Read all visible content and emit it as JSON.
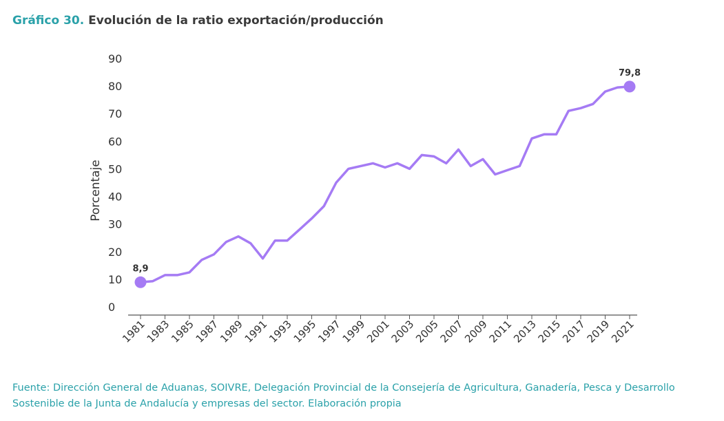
{
  "header": {
    "title_number": "Gráfico 30.",
    "title_text": "Evolución de la ratio exportación/producción"
  },
  "source_text": "Fuente: Dirección General de Aduanas, SOIVRE, Delegación Provincial de la Consejería de Agricultura, Ganadería, Pesca y Desarrollo Sostenible de la Junta de Andalucía y empresas del sector. Elaboración propia",
  "chart_data": {
    "type": "line",
    "title": "Evolución de la ratio exportación/producción",
    "xlabel": "",
    "ylabel": "Porcentaje",
    "ylim": [
      0,
      90
    ],
    "yticks": [
      0,
      10,
      20,
      30,
      40,
      50,
      60,
      70,
      80,
      90
    ],
    "xtick_labels": [
      "1981",
      "1983",
      "1985",
      "1987",
      "1989",
      "1991",
      "1993",
      "1995",
      "1997",
      "1999",
      "2001",
      "2003",
      "2005",
      "2007",
      "2009",
      "2011",
      "2013",
      "2015",
      "2017",
      "2019",
      "2021"
    ],
    "x": [
      1981,
      1982,
      1983,
      1984,
      1985,
      1986,
      1987,
      1988,
      1989,
      1990,
      1991,
      1992,
      1993,
      1994,
      1995,
      1996,
      1997,
      1998,
      1999,
      2000,
      2001,
      2002,
      2003,
      2004,
      2005,
      2006,
      2007,
      2008,
      2009,
      2010,
      2011,
      2012,
      2013,
      2014,
      2015,
      2016,
      2017,
      2018,
      2019,
      2020,
      2021
    ],
    "series": [
      {
        "values": [
          8.9,
          9.3,
          11.5,
          11.5,
          12.5,
          17,
          19,
          23.5,
          25.5,
          23,
          17.5,
          24,
          24,
          28,
          32,
          36.5,
          45,
          50,
          51,
          52,
          50.5,
          52,
          50,
          55,
          54.5,
          52,
          57,
          51,
          53.5,
          48,
          49.5,
          51,
          61,
          62.5,
          62.5,
          71,
          72,
          73.5,
          78,
          79.5,
          79.8
        ]
      }
    ],
    "line_color": "#a57bf4",
    "grid": false,
    "endpoint_labels": [
      {
        "x": 1981,
        "value": 8.9,
        "text": "8,9"
      },
      {
        "x": 2021,
        "value": 79.8,
        "text": "79,8"
      }
    ]
  }
}
